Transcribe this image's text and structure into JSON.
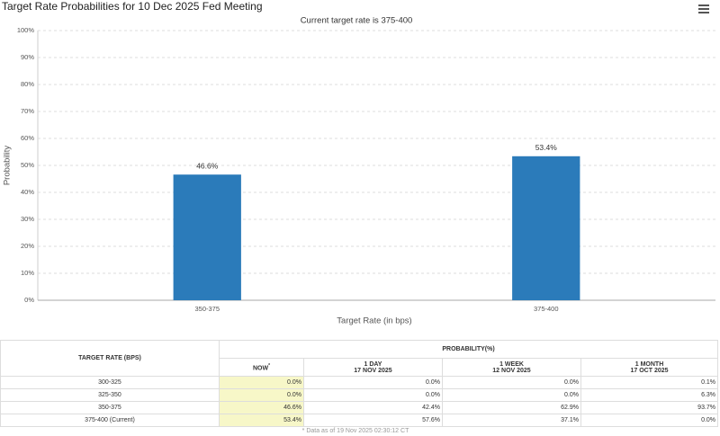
{
  "chart_data": {
    "type": "bar",
    "title": "Target Rate Probabilities for 10 Dec 2025 Fed Meeting",
    "subtitle": "Current target rate is 375-400",
    "xlabel": "Target Rate (in bps)",
    "ylabel": "Probability",
    "categories": [
      "350-375",
      "375-400"
    ],
    "values": [
      46.6,
      53.4
    ],
    "value_labels": [
      "46.6%",
      "53.4%"
    ],
    "color": "#2b7bba",
    "ylim": [
      0,
      100
    ],
    "yticks": [
      {
        "value": 0,
        "label": "0%"
      },
      {
        "value": 10,
        "label": "10%"
      },
      {
        "value": 20,
        "label": "20%"
      },
      {
        "value": 30,
        "label": "30%"
      },
      {
        "value": 40,
        "label": "40%"
      },
      {
        "value": 50,
        "label": "50%"
      },
      {
        "value": 60,
        "label": "60%"
      },
      {
        "value": 70,
        "label": "70%"
      },
      {
        "value": 80,
        "label": "80%"
      },
      {
        "value": 90,
        "label": "90%"
      },
      {
        "value": 100,
        "label": "100%"
      }
    ],
    "grid": true
  },
  "table": {
    "header": {
      "rate": "TARGET RATE (BPS)",
      "probability": "PROBABILITY(%)",
      "columns": [
        {
          "label": "NOW",
          "mark": "*"
        },
        {
          "label": "1 DAY",
          "date": "17 NOV 2025"
        },
        {
          "label": "1 WEEK",
          "date": "12 NOV 2025"
        },
        {
          "label": "1 MONTH",
          "date": "17 OCT 2025"
        }
      ]
    },
    "rows": [
      [
        "300-325",
        "0.0%",
        "0.0%",
        "0.0%",
        "0.1%"
      ],
      [
        "325-350",
        "0.0%",
        "0.0%",
        "0.0%",
        "6.3%"
      ],
      [
        "350-375",
        "46.6%",
        "42.4%",
        "62.9%",
        "93.7%"
      ],
      [
        "375-400 (Current)",
        "53.4%",
        "57.6%",
        "37.1%",
        "0.0%"
      ]
    ],
    "note": "* Data as of 19 Nov 2025 02:30:12 CT"
  }
}
